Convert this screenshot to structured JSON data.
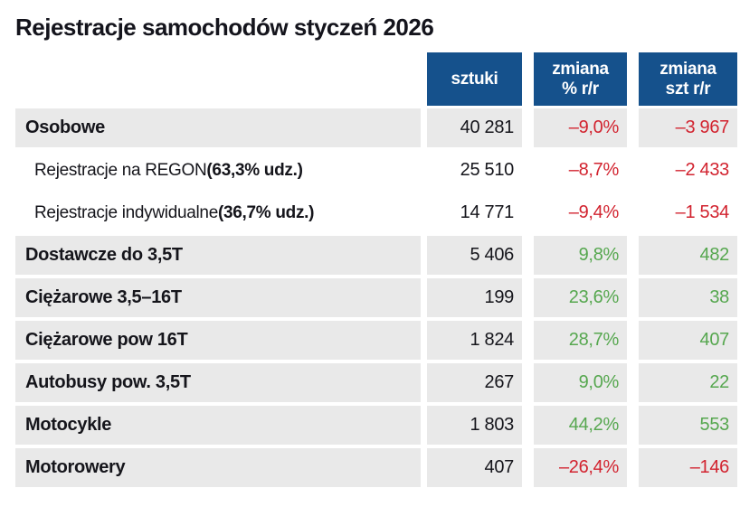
{
  "title": "Rejestracje samochodów styczeń 2026",
  "header": {
    "col_sztuki": {
      "line1": "sztuki",
      "line2": ""
    },
    "col_pct": {
      "line1": "zmiana",
      "line2": "% r/r"
    },
    "col_szt": {
      "line1": "zmiana",
      "line2": "szt r/r"
    }
  },
  "rows": [
    {
      "label": "Osobowe",
      "label_bold": "",
      "sztuki": "40 281",
      "pct": "–9,0%",
      "szt": "–3 967"
    },
    {
      "label": "Rejestracje na REGON ",
      "label_bold": "(63,3% udz.)",
      "sztuki": "25 510",
      "pct": "–8,7%",
      "szt": "–2 433"
    },
    {
      "label": "Rejestracje indywidualne ",
      "label_bold": "(36,7% udz.)",
      "sztuki": "14 771",
      "pct": "–9,4%",
      "szt": "–1 534"
    },
    {
      "label": "Dostawcze do 3,5T",
      "label_bold": "",
      "sztuki": "5 406",
      "pct": "9,8%",
      "szt": "482"
    },
    {
      "label": "Ciężarowe 3,5–16T",
      "label_bold": "",
      "sztuki": "199",
      "pct": "23,6%",
      "szt": "38"
    },
    {
      "label": "Ciężarowe pow 16T",
      "label_bold": "",
      "sztuki": "1 824",
      "pct": "28,7%",
      "szt": "407"
    },
    {
      "label": "Autobusy pow. 3,5T",
      "label_bold": "",
      "sztuki": "267",
      "pct": "9,0%",
      "szt": "22"
    },
    {
      "label": "Motocykle",
      "label_bold": "",
      "sztuki": "1 803",
      "pct": "44,2%",
      "szt": "553"
    },
    {
      "label": "Motorowery",
      "label_bold": "",
      "sztuki": "407",
      "pct": "–26,4%",
      "szt": "–146"
    }
  ],
  "colors": {
    "header_bg": "#15518c",
    "row_bg": "#e9e9e9",
    "negative": "#d2232f",
    "positive": "#56a74f"
  },
  "chart_data": {
    "type": "table",
    "title": "Rejestracje samochodów styczeń 2026",
    "columns": [
      "kategoria",
      "sztuki",
      "zmiana % r/r",
      "zmiana szt r/r"
    ],
    "rows": [
      [
        "Osobowe",
        40281,
        -9.0,
        -3967
      ],
      [
        "Rejestracje na REGON (63,3% udz.)",
        25510,
        -8.7,
        -2433
      ],
      [
        "Rejestracje indywidualne (36,7% udz.)",
        14771,
        -9.4,
        -1534
      ],
      [
        "Dostawcze do 3,5T",
        5406,
        9.8,
        482
      ],
      [
        "Ciężarowe 3,5–16T",
        199,
        23.6,
        38
      ],
      [
        "Ciężarowe pow 16T",
        1824,
        28.7,
        407
      ],
      [
        "Autobusy pow. 3,5T",
        267,
        9.0,
        22
      ],
      [
        "Motocykle",
        1803,
        44.2,
        553
      ],
      [
        "Motorowery",
        407,
        -26.4,
        -146
      ]
    ]
  }
}
